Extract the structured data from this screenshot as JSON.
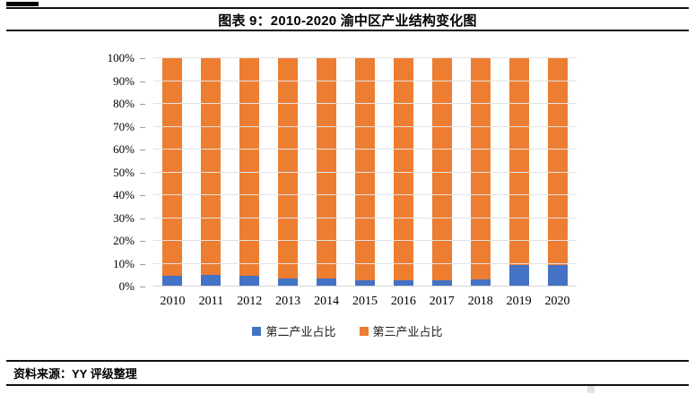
{
  "header": {
    "title": "图表 9：2010-2020 渝中区产业结构变化图"
  },
  "chart_data": {
    "type": "bar",
    "variant": "stacked-100-percent",
    "title": "图表 9：2010-2020 渝中区产业结构变化图",
    "categories": [
      "2010",
      "2011",
      "2012",
      "2013",
      "2014",
      "2015",
      "2016",
      "2017",
      "2018",
      "2019",
      "2020"
    ],
    "series": [
      {
        "name": "第二产业占比",
        "color": "#4472C4",
        "values": [
          4.8,
          5.3,
          4.9,
          3.4,
          3.5,
          2.9,
          2.8,
          2.6,
          3.0,
          9.3,
          9.4
        ]
      },
      {
        "name": "第三产业占比",
        "color": "#ED7D31",
        "values": [
          95.2,
          94.7,
          95.1,
          96.6,
          96.5,
          97.1,
          97.2,
          97.4,
          97.0,
          90.7,
          90.6
        ]
      }
    ],
    "xlabel": "",
    "ylabel": "",
    "ylim": [
      0,
      100
    ],
    "ytick_labels": [
      "0%",
      "10%",
      "20%",
      "30%",
      "40%",
      "50%",
      "60%",
      "70%",
      "80%",
      "90%",
      "100%"
    ],
    "grid": true,
    "gridline_color": "#e2e2e2",
    "legend_position": "bottom"
  },
  "footer": {
    "source": "资料来源：YY 评级整理"
  }
}
